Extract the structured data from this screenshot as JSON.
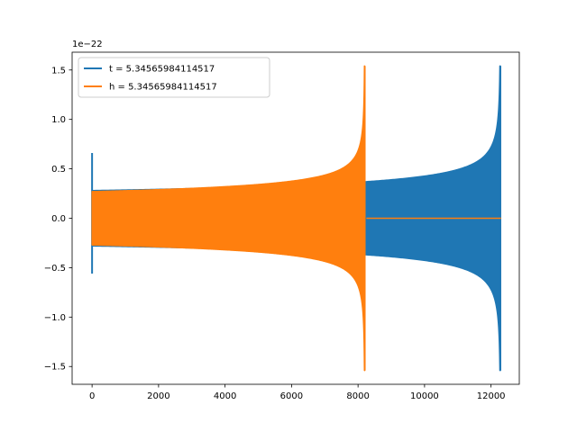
{
  "chart_data": {
    "type": "line",
    "title": "",
    "xlabel": "",
    "ylabel": "",
    "y_offset_label": "1e−22",
    "xlim": [
      -600,
      12850
    ],
    "ylim": [
      -1.68,
      1.68
    ],
    "x_ticks": [
      0,
      2000,
      4000,
      6000,
      8000,
      10000,
      12000
    ],
    "x_tick_labels": [
      "0",
      "2000",
      "4000",
      "6000",
      "8000",
      "10000",
      "12000"
    ],
    "y_ticks": [
      -1.5,
      -1.0,
      -0.5,
      0.0,
      0.5,
      1.0,
      1.5
    ],
    "y_tick_labels": [
      "−1.5",
      "−1.0",
      "−0.5",
      "0.0",
      "0.5",
      "1.0",
      "1.5"
    ],
    "grid": false,
    "legend_position": "top-left",
    "series": [
      {
        "name": "t = 5.34565984114517",
        "color": "#1f77b4",
        "start_spike": {
          "x": 0,
          "min": -0.56,
          "max": 0.66
        },
        "envelope_start": {
          "x": 0,
          "amplitude": 0.28
        },
        "merger": {
          "x": 12280,
          "min": -1.54,
          "max": 1.54
        },
        "end_x": 12300
      },
      {
        "name": "h = 5.34565984114517",
        "color": "#ff7f0e",
        "envelope_start": {
          "x": 0,
          "amplitude": 0.27
        },
        "merger": {
          "x": 8200,
          "min": -1.54,
          "max": 1.54
        },
        "tail": {
          "x_start": 8250,
          "x_end": 12300,
          "value": 0.0
        }
      }
    ]
  }
}
